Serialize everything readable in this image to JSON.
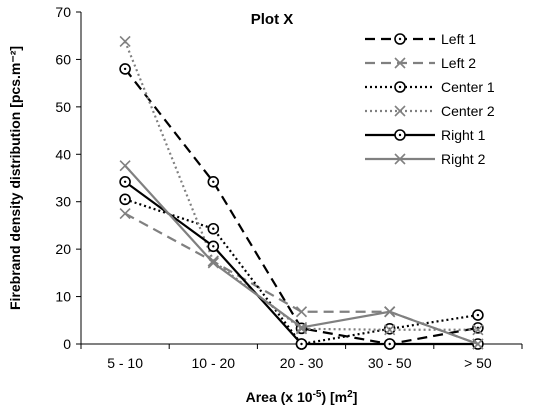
{
  "chart_data": {
    "type": "line",
    "title": "Plot X",
    "xlabel_parts": {
      "before": "Area (x 10",
      "sup": "-5",
      "after": ") [m",
      "sup2": "2",
      "end": "]"
    },
    "ylabel": "Firebrand density distribution [pcs.m⁻²]",
    "categories": [
      "5 - 10",
      "10 - 20",
      "20 - 30",
      "30 - 50",
      "> 50"
    ],
    "ylim": [
      0,
      70
    ],
    "yticks": [
      "0",
      "10",
      "20",
      "30",
      "40",
      "50",
      "60",
      "70"
    ],
    "grid": false,
    "legend_position": "top-right",
    "series": [
      {
        "name": "Left 1",
        "values": [
          58,
          34.2,
          3.3,
          0,
          3.4
        ],
        "color": "#000000",
        "dash": "dash",
        "marker": "circle-dot"
      },
      {
        "name": "Left 2",
        "values": [
          27.5,
          17.4,
          6.8,
          6.8,
          0
        ],
        "color": "#808080",
        "dash": "dash",
        "marker": "x"
      },
      {
        "name": "Center 1",
        "values": [
          30.5,
          24.3,
          0,
          3.2,
          6.1
        ],
        "color": "#000000",
        "dash": "dot",
        "marker": "circle-dot"
      },
      {
        "name": "Center 2",
        "values": [
          63.8,
          17.5,
          3.2,
          3,
          3
        ],
        "color": "#808080",
        "dash": "dot",
        "marker": "x"
      },
      {
        "name": "Right 1",
        "values": [
          34.2,
          20.6,
          0,
          0,
          0
        ],
        "color": "#000000",
        "dash": "solid",
        "marker": "circle-dot"
      },
      {
        "name": "Right 2",
        "values": [
          37.6,
          17.1,
          3.5,
          6.8,
          0
        ],
        "color": "#808080",
        "dash": "solid",
        "marker": "x"
      }
    ]
  }
}
